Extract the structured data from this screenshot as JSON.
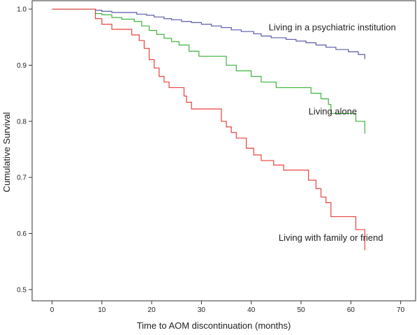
{
  "chart_data": {
    "type": "line",
    "xlabel": "Time to AOM discontinuation (months)",
    "ylabel": "Cumulative Survival",
    "xlim": [
      -4,
      73
    ],
    "ylim": [
      0.48,
      1.015
    ],
    "x_ticks": [
      "0",
      "10",
      "20",
      "30",
      "40",
      "50",
      "60",
      "70"
    ],
    "x_tick_values": [
      0,
      10,
      20,
      30,
      40,
      50,
      60,
      70
    ],
    "y_ticks": [
      "0.5",
      "0.6",
      "0.7",
      "0.8",
      "0.9",
      "1.0"
    ],
    "y_tick_values": [
      0.5,
      0.6,
      0.7,
      0.8,
      0.9,
      1.0
    ],
    "grid": false,
    "step": true,
    "series": [
      {
        "name": "Living in a psychiatric institution",
        "color": "#5a5aa8",
        "label_anchor": [
          43.5,
          0.962
        ],
        "points": [
          [
            0,
            1.0
          ],
          [
            8.7,
            1.0
          ],
          [
            8.7,
            0.998
          ],
          [
            10,
            0.998
          ],
          [
            10,
            0.996
          ],
          [
            12,
            0.996
          ],
          [
            12,
            0.994
          ],
          [
            17,
            0.994
          ],
          [
            17,
            0.991
          ],
          [
            19,
            0.991
          ],
          [
            19,
            0.989
          ],
          [
            20.5,
            0.989
          ],
          [
            20.5,
            0.986
          ],
          [
            22.5,
            0.986
          ],
          [
            22.5,
            0.983
          ],
          [
            24,
            0.983
          ],
          [
            24,
            0.981
          ],
          [
            26,
            0.981
          ],
          [
            26,
            0.978
          ],
          [
            28,
            0.978
          ],
          [
            28,
            0.976
          ],
          [
            30,
            0.976
          ],
          [
            30,
            0.973
          ],
          [
            32,
            0.973
          ],
          [
            32,
            0.97
          ],
          [
            34,
            0.97
          ],
          [
            34,
            0.967
          ],
          [
            36,
            0.967
          ],
          [
            36,
            0.963
          ],
          [
            38,
            0.963
          ],
          [
            38,
            0.96
          ],
          [
            40.5,
            0.96
          ],
          [
            40.5,
            0.956
          ],
          [
            42,
            0.956
          ],
          [
            42,
            0.952
          ],
          [
            44,
            0.952
          ],
          [
            44,
            0.949
          ],
          [
            47,
            0.949
          ],
          [
            47,
            0.946
          ],
          [
            49,
            0.946
          ],
          [
            49,
            0.943
          ],
          [
            51,
            0.943
          ],
          [
            51,
            0.94
          ],
          [
            53,
            0.94
          ],
          [
            53,
            0.936
          ],
          [
            55,
            0.936
          ],
          [
            55,
            0.932
          ],
          [
            57,
            0.932
          ],
          [
            57,
            0.928
          ],
          [
            59.5,
            0.928
          ],
          [
            59.5,
            0.924
          ],
          [
            61.5,
            0.924
          ],
          [
            61.5,
            0.919
          ],
          [
            62.8,
            0.919
          ],
          [
            62.8,
            0.911
          ]
        ]
      },
      {
        "name": "Living alone",
        "color": "#3cb43c",
        "label_anchor": [
          51.5,
          0.812
        ],
        "points": [
          [
            0,
            1.0
          ],
          [
            8.7,
            1.0
          ],
          [
            8.7,
            0.992
          ],
          [
            10,
            0.992
          ],
          [
            10,
            0.99
          ],
          [
            12,
            0.99
          ],
          [
            12,
            0.985
          ],
          [
            14,
            0.985
          ],
          [
            14,
            0.982
          ],
          [
            16.5,
            0.982
          ],
          [
            16.5,
            0.978
          ],
          [
            18,
            0.978
          ],
          [
            18,
            0.97
          ],
          [
            19.5,
            0.97
          ],
          [
            19.5,
            0.962
          ],
          [
            21,
            0.962
          ],
          [
            21,
            0.955
          ],
          [
            22.5,
            0.955
          ],
          [
            22.5,
            0.948
          ],
          [
            24,
            0.948
          ],
          [
            24,
            0.942
          ],
          [
            25.5,
            0.942
          ],
          [
            25.5,
            0.936
          ],
          [
            27.5,
            0.936
          ],
          [
            27.5,
            0.925
          ],
          [
            29.5,
            0.925
          ],
          [
            29.5,
            0.916
          ],
          [
            35,
            0.916
          ],
          [
            35,
            0.9
          ],
          [
            37,
            0.9
          ],
          [
            37,
            0.89
          ],
          [
            40,
            0.89
          ],
          [
            40,
            0.88
          ],
          [
            42,
            0.88
          ],
          [
            42,
            0.87
          ],
          [
            45,
            0.87
          ],
          [
            45,
            0.86
          ],
          [
            52,
            0.86
          ],
          [
            52,
            0.85
          ],
          [
            54,
            0.85
          ],
          [
            54,
            0.84
          ],
          [
            55.5,
            0.84
          ],
          [
            55.5,
            0.83
          ],
          [
            56,
            0.83
          ],
          [
            56,
            0.814
          ],
          [
            61,
            0.814
          ],
          [
            61,
            0.8
          ],
          [
            62.8,
            0.8
          ],
          [
            62.8,
            0.778
          ]
        ]
      },
      {
        "name": "Living with family or friend",
        "color": "#e8413c",
        "label_anchor": [
          45.5,
          0.587
        ],
        "points": [
          [
            0,
            1.0
          ],
          [
            8.7,
            1.0
          ],
          [
            8.7,
            0.983
          ],
          [
            10,
            0.983
          ],
          [
            10,
            0.973
          ],
          [
            12,
            0.973
          ],
          [
            12,
            0.964
          ],
          [
            16,
            0.964
          ],
          [
            16,
            0.954
          ],
          [
            17.5,
            0.954
          ],
          [
            17.5,
            0.944
          ],
          [
            18.5,
            0.944
          ],
          [
            18.5,
            0.93
          ],
          [
            19.5,
            0.93
          ],
          [
            19.5,
            0.91
          ],
          [
            20.5,
            0.91
          ],
          [
            20.5,
            0.895
          ],
          [
            21.5,
            0.895
          ],
          [
            21.5,
            0.88
          ],
          [
            22.5,
            0.88
          ],
          [
            22.5,
            0.87
          ],
          [
            23.5,
            0.87
          ],
          [
            23.5,
            0.86
          ],
          [
            26.5,
            0.86
          ],
          [
            26.5,
            0.845
          ],
          [
            27,
            0.845
          ],
          [
            27,
            0.834
          ],
          [
            28,
            0.834
          ],
          [
            28,
            0.822
          ],
          [
            34,
            0.822
          ],
          [
            34,
            0.8
          ],
          [
            35,
            0.8
          ],
          [
            35,
            0.79
          ],
          [
            36,
            0.79
          ],
          [
            36,
            0.78
          ],
          [
            37,
            0.78
          ],
          [
            37,
            0.77
          ],
          [
            39,
            0.77
          ],
          [
            39,
            0.752
          ],
          [
            40.5,
            0.752
          ],
          [
            40.5,
            0.74
          ],
          [
            42,
            0.74
          ],
          [
            42,
            0.73
          ],
          [
            44.5,
            0.73
          ],
          [
            44.5,
            0.722
          ],
          [
            46.5,
            0.722
          ],
          [
            46.5,
            0.713
          ],
          [
            51.5,
            0.713
          ],
          [
            51.5,
            0.695
          ],
          [
            53,
            0.695
          ],
          [
            53,
            0.68
          ],
          [
            54,
            0.68
          ],
          [
            54,
            0.665
          ],
          [
            55,
            0.665
          ],
          [
            55,
            0.655
          ],
          [
            56,
            0.655
          ],
          [
            56,
            0.63
          ],
          [
            61,
            0.63
          ],
          [
            61,
            0.607
          ],
          [
            62.8,
            0.607
          ],
          [
            62.8,
            0.57
          ]
        ]
      }
    ]
  }
}
